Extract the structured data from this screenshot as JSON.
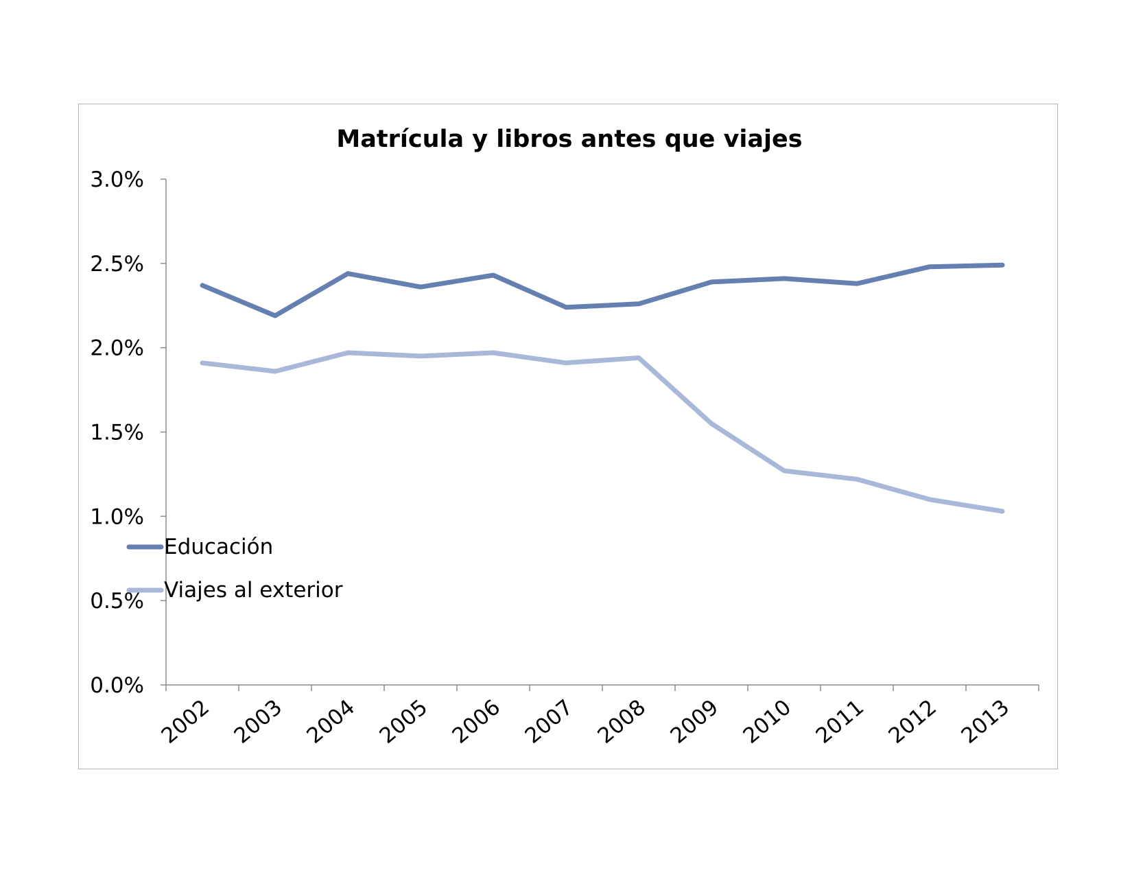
{
  "chart_data": {
    "type": "line",
    "title": "Matrícula y libros  antes que viajes",
    "xlabel": "",
    "ylabel": "",
    "categories": [
      "2002",
      "2003",
      "2004",
      "2005",
      "2006",
      "2007",
      "2008",
      "2009",
      "2010",
      "2011",
      "2012",
      "2013"
    ],
    "series": [
      {
        "name": "Educación",
        "color": "#6580b0",
        "values": [
          2.37,
          2.19,
          2.44,
          2.36,
          2.43,
          2.24,
          2.26,
          2.39,
          2.41,
          2.38,
          2.48,
          2.49
        ]
      },
      {
        "name": "Viajes al exterior",
        "color": "#a9b7d8",
        "values": [
          1.91,
          1.86,
          1.97,
          1.95,
          1.97,
          1.91,
          1.94,
          1.55,
          1.27,
          1.22,
          1.1,
          1.03
        ]
      }
    ],
    "ylim": [
      0,
      3.0
    ],
    "yticks": [
      "0.0%",
      "0.5%",
      "1.0%",
      "1.5%",
      "2.0%",
      "2.5%",
      "3.0%"
    ],
    "grid": false,
    "legend": "lower-left"
  }
}
